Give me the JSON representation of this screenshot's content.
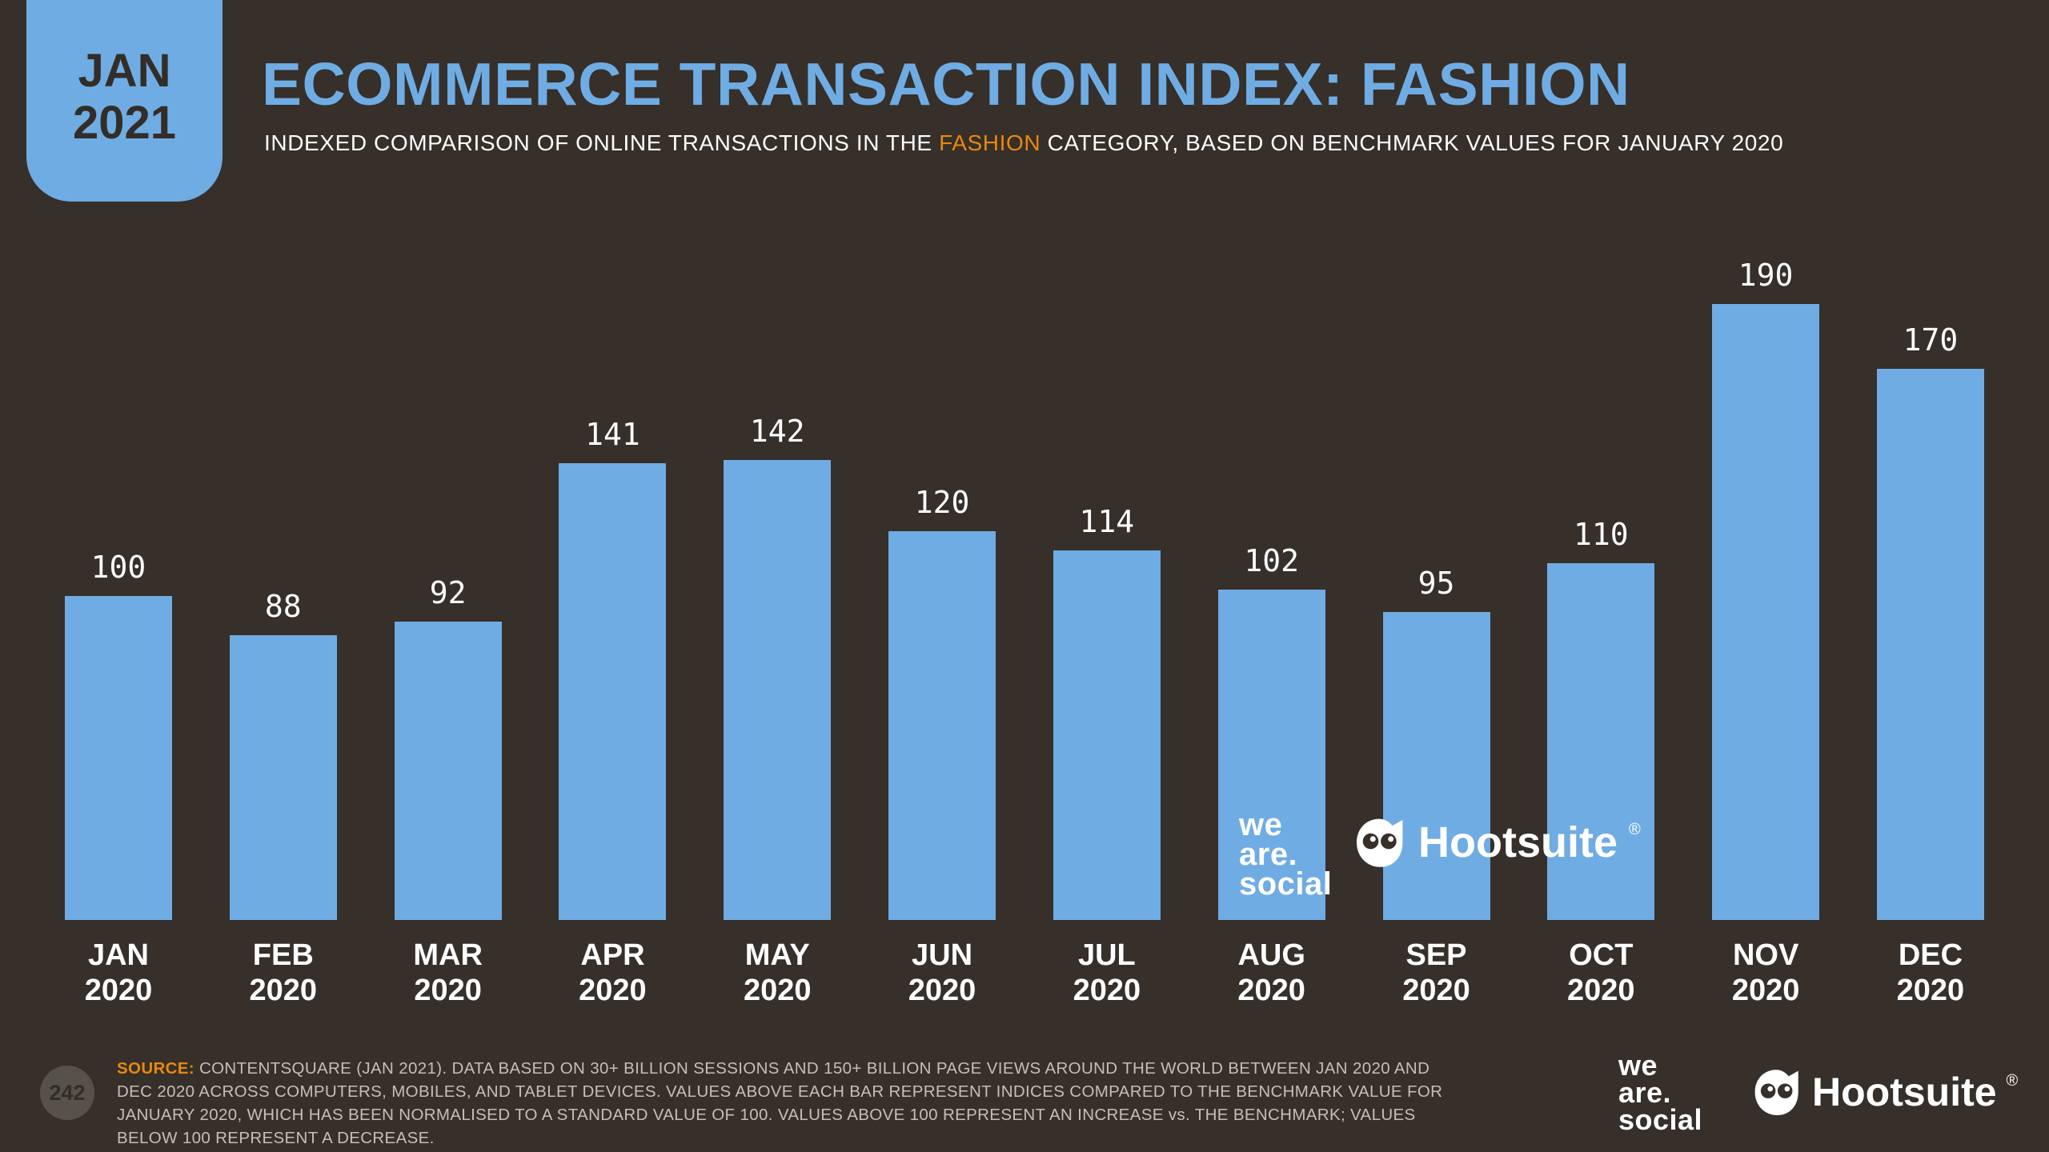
{
  "badge": {
    "month": "JAN",
    "year": "2021"
  },
  "header": {
    "title": "ECOMMERCE TRANSACTION INDEX: FASHION",
    "subtitle": {
      "prefix": "INDEXED COMPARISON OF ONLINE TRANSACTIONS IN THE ",
      "highlight": "FASHION",
      "suffix": " CATEGORY, BASED ON BENCHMARK VALUES FOR JANUARY 2020"
    }
  },
  "chart_data": {
    "type": "bar",
    "title": "ECOMMERCE TRANSACTION INDEX: FASHION",
    "categories": [
      "JAN 2020",
      "FEB 2020",
      "MAR 2020",
      "APR 2020",
      "MAY 2020",
      "JUN 2020",
      "JUL 2020",
      "AUG 2020",
      "SEP 2020",
      "OCT 2020",
      "NOV 2020",
      "DEC 2020"
    ],
    "values": [
      100,
      88,
      92,
      141,
      142,
      120,
      114,
      102,
      95,
      110,
      190,
      170
    ],
    "ylim": [
      0,
      200
    ],
    "grid": false,
    "legend": false,
    "bar_color": "#6FACE3",
    "value_labels": "above bars",
    "xlabel": "",
    "ylabel": ""
  },
  "watermarks": {
    "we_are_social_lines": [
      "we",
      "are.",
      "social"
    ],
    "hootsuite": "Hootsuite",
    "registered": "®"
  },
  "footer": {
    "page_number": "242",
    "source_label": "SOURCE:",
    "source_text": "CONTENTSQUARE (JAN 2021). DATA BASED ON 30+ BILLION SESSIONS AND 150+ BILLION PAGE VIEWS AROUND THE WORLD BETWEEN JAN 2020 AND DEC 2020 ACROSS COMPUTERS, MOBILES, AND TABLET DEVICES. VALUES ABOVE EACH BAR REPRESENT INDICES COMPARED TO THE BENCHMARK VALUE FOR JANUARY 2020, WHICH HAS BEEN NORMALISED TO A STANDARD VALUE OF 100. VALUES ABOVE 100 REPRESENT AN INCREASE vs. THE BENCHMARK; VALUES BELOW 100 REPRESENT A DECREASE."
  },
  "colors": {
    "background": "#362F2A",
    "bar": "#6FACE3",
    "accent_blue": "#6FACE3",
    "accent_orange": "#E8890B",
    "text_white": "#FFFFFF",
    "muted_text": "#C6BFB8",
    "badge_text": "#332D28"
  }
}
